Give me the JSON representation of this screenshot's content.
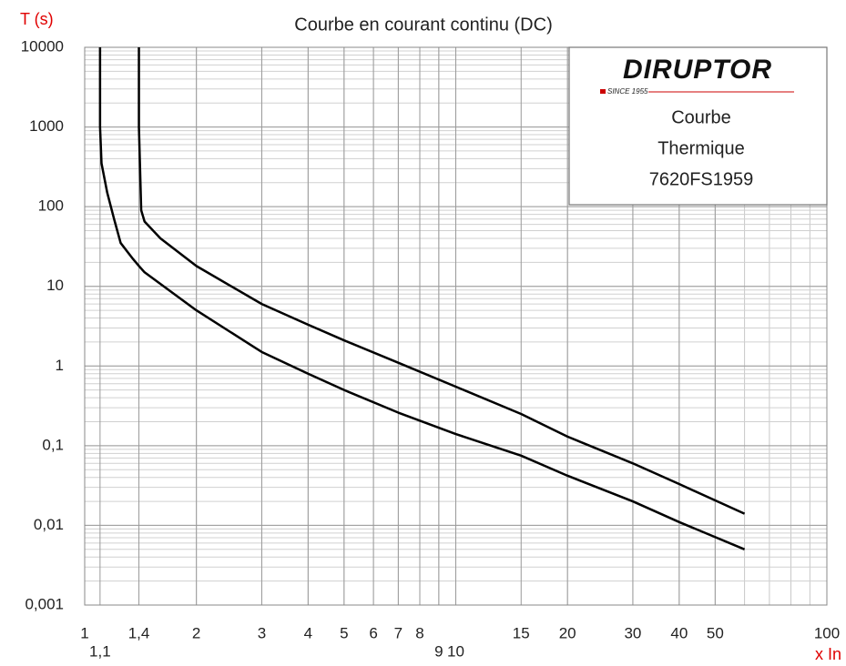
{
  "chart_data": {
    "type": "line",
    "title": "Courbe en courant continu (DC)",
    "y_label": "T (s)",
    "x_label": "x In",
    "log_x": true,
    "log_y": true,
    "grid": true,
    "minor_grid": true,
    "xlim": [
      1,
      100
    ],
    "ylim": [
      0.001,
      10000
    ],
    "xticks": [
      1,
      {
        "value": 1.1,
        "label": "1,1"
      },
      {
        "value": 1.4,
        "label": "1,4"
      },
      2,
      3,
      4,
      5,
      6,
      7,
      8,
      9,
      10,
      15,
      20,
      30,
      40,
      50,
      100
    ],
    "yticks": [
      {
        "value": 0.001,
        "label": "0,001"
      },
      {
        "value": 0.01,
        "label": "0,01"
      },
      {
        "value": 0.1,
        "label": "0,1"
      },
      1,
      10,
      100,
      1000,
      10000
    ],
    "legend_box": {
      "brand": "DIRUPTOR",
      "since": "SINCE 1955",
      "lines": [
        "Courbe",
        "Thermique",
        "7620FS1959"
      ]
    },
    "series": [
      {
        "color": "#000000",
        "x": [
          1.4,
          1.4,
          1.42,
          1.45,
          1.6,
          2,
          3,
          4,
          5,
          7,
          10,
          15,
          20,
          30,
          40,
          60
        ],
        "values": [
          10000,
          1000,
          90,
          65,
          40,
          18,
          6,
          3.3,
          2.1,
          1.1,
          0.55,
          0.25,
          0.13,
          0.06,
          0.033,
          0.014
        ]
      },
      {
        "color": "#000000",
        "x": [
          1.1,
          1.1,
          1.11,
          1.15,
          1.2,
          1.25,
          1.35,
          1.4,
          1.45,
          2,
          3,
          4,
          5,
          7,
          10,
          15,
          20,
          30,
          40,
          60
        ],
        "values": [
          10000,
          1000,
          350,
          150,
          70,
          35,
          22,
          18,
          15,
          5,
          1.5,
          0.8,
          0.5,
          0.26,
          0.14,
          0.075,
          0.042,
          0.02,
          0.011,
          0.005
        ]
      }
    ]
  }
}
